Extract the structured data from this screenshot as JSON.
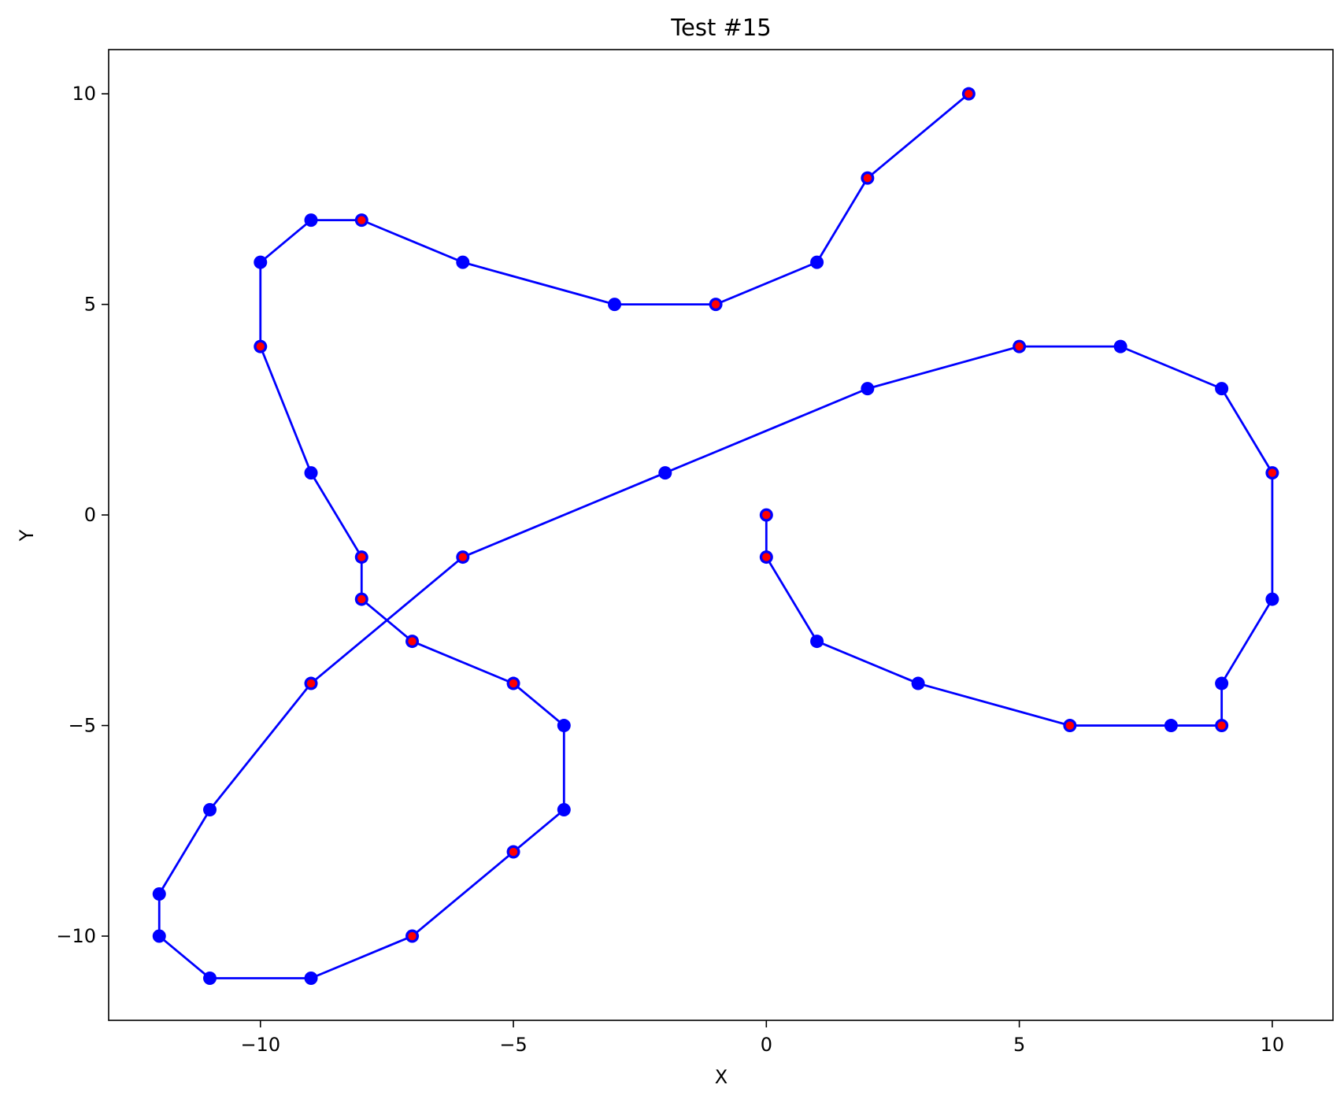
{
  "chart_data": {
    "type": "line",
    "title": "Test #15",
    "xlabel": "X",
    "ylabel": "Y",
    "xlim": [
      -13,
      11.2
    ],
    "ylim": [
      -12,
      11.05
    ],
    "xticks": [
      -10,
      -5,
      0,
      5,
      10
    ],
    "yticks": [
      -10,
      -5,
      0,
      5,
      10
    ],
    "xtick_labels": [
      "−10",
      "−5",
      "0",
      "5",
      "10"
    ],
    "ytick_labels": [
      "−10",
      "−5",
      "0",
      "5",
      "10"
    ],
    "grid": false,
    "line_color": "#0000ff",
    "marker_color": "#0000ff",
    "highlight_color": "#ff0000",
    "points": [
      {
        "x": 0,
        "y": 0,
        "highlight": true
      },
      {
        "x": 0,
        "y": -1,
        "highlight": true
      },
      {
        "x": 1,
        "y": -3,
        "highlight": false
      },
      {
        "x": 3,
        "y": -4,
        "highlight": false
      },
      {
        "x": 6,
        "y": -5,
        "highlight": true
      },
      {
        "x": 8,
        "y": -5,
        "highlight": false
      },
      {
        "x": 9,
        "y": -5,
        "highlight": true
      },
      {
        "x": 9,
        "y": -4,
        "highlight": false
      },
      {
        "x": 10,
        "y": -2,
        "highlight": false
      },
      {
        "x": 10,
        "y": 1,
        "highlight": true
      },
      {
        "x": 9,
        "y": 3,
        "highlight": false
      },
      {
        "x": 7,
        "y": 4,
        "highlight": false
      },
      {
        "x": 5,
        "y": 4,
        "highlight": true
      },
      {
        "x": 2,
        "y": 3,
        "highlight": false
      },
      {
        "x": -2,
        "y": 1,
        "highlight": false
      },
      {
        "x": -6,
        "y": -1,
        "highlight": true
      },
      {
        "x": -9,
        "y": -4,
        "highlight": true
      },
      {
        "x": -11,
        "y": -7,
        "highlight": false
      },
      {
        "x": -12,
        "y": -9,
        "highlight": false
      },
      {
        "x": -12,
        "y": -10,
        "highlight": false
      },
      {
        "x": -11,
        "y": -11,
        "highlight": false
      },
      {
        "x": -9,
        "y": -11,
        "highlight": false
      },
      {
        "x": -7,
        "y": -10,
        "highlight": true
      },
      {
        "x": -5,
        "y": -8,
        "highlight": true
      },
      {
        "x": -4,
        "y": -7,
        "highlight": false
      },
      {
        "x": -4,
        "y": -5,
        "highlight": false
      },
      {
        "x": -5,
        "y": -4,
        "highlight": true
      },
      {
        "x": -7,
        "y": -3,
        "highlight": true
      },
      {
        "x": -8,
        "y": -2,
        "highlight": true
      },
      {
        "x": -8,
        "y": -1,
        "highlight": true
      },
      {
        "x": -9,
        "y": 1,
        "highlight": false
      },
      {
        "x": -10,
        "y": 4,
        "highlight": true
      },
      {
        "x": -10,
        "y": 6,
        "highlight": false
      },
      {
        "x": -9,
        "y": 7,
        "highlight": false
      },
      {
        "x": -8,
        "y": 7,
        "highlight": true
      },
      {
        "x": -6,
        "y": 6,
        "highlight": false
      },
      {
        "x": -3,
        "y": 5,
        "highlight": false
      },
      {
        "x": -1,
        "y": 5,
        "highlight": true
      },
      {
        "x": 1,
        "y": 6,
        "highlight": false
      },
      {
        "x": 2,
        "y": 8,
        "highlight": true
      },
      {
        "x": 4,
        "y": 10,
        "highlight": true
      }
    ]
  }
}
